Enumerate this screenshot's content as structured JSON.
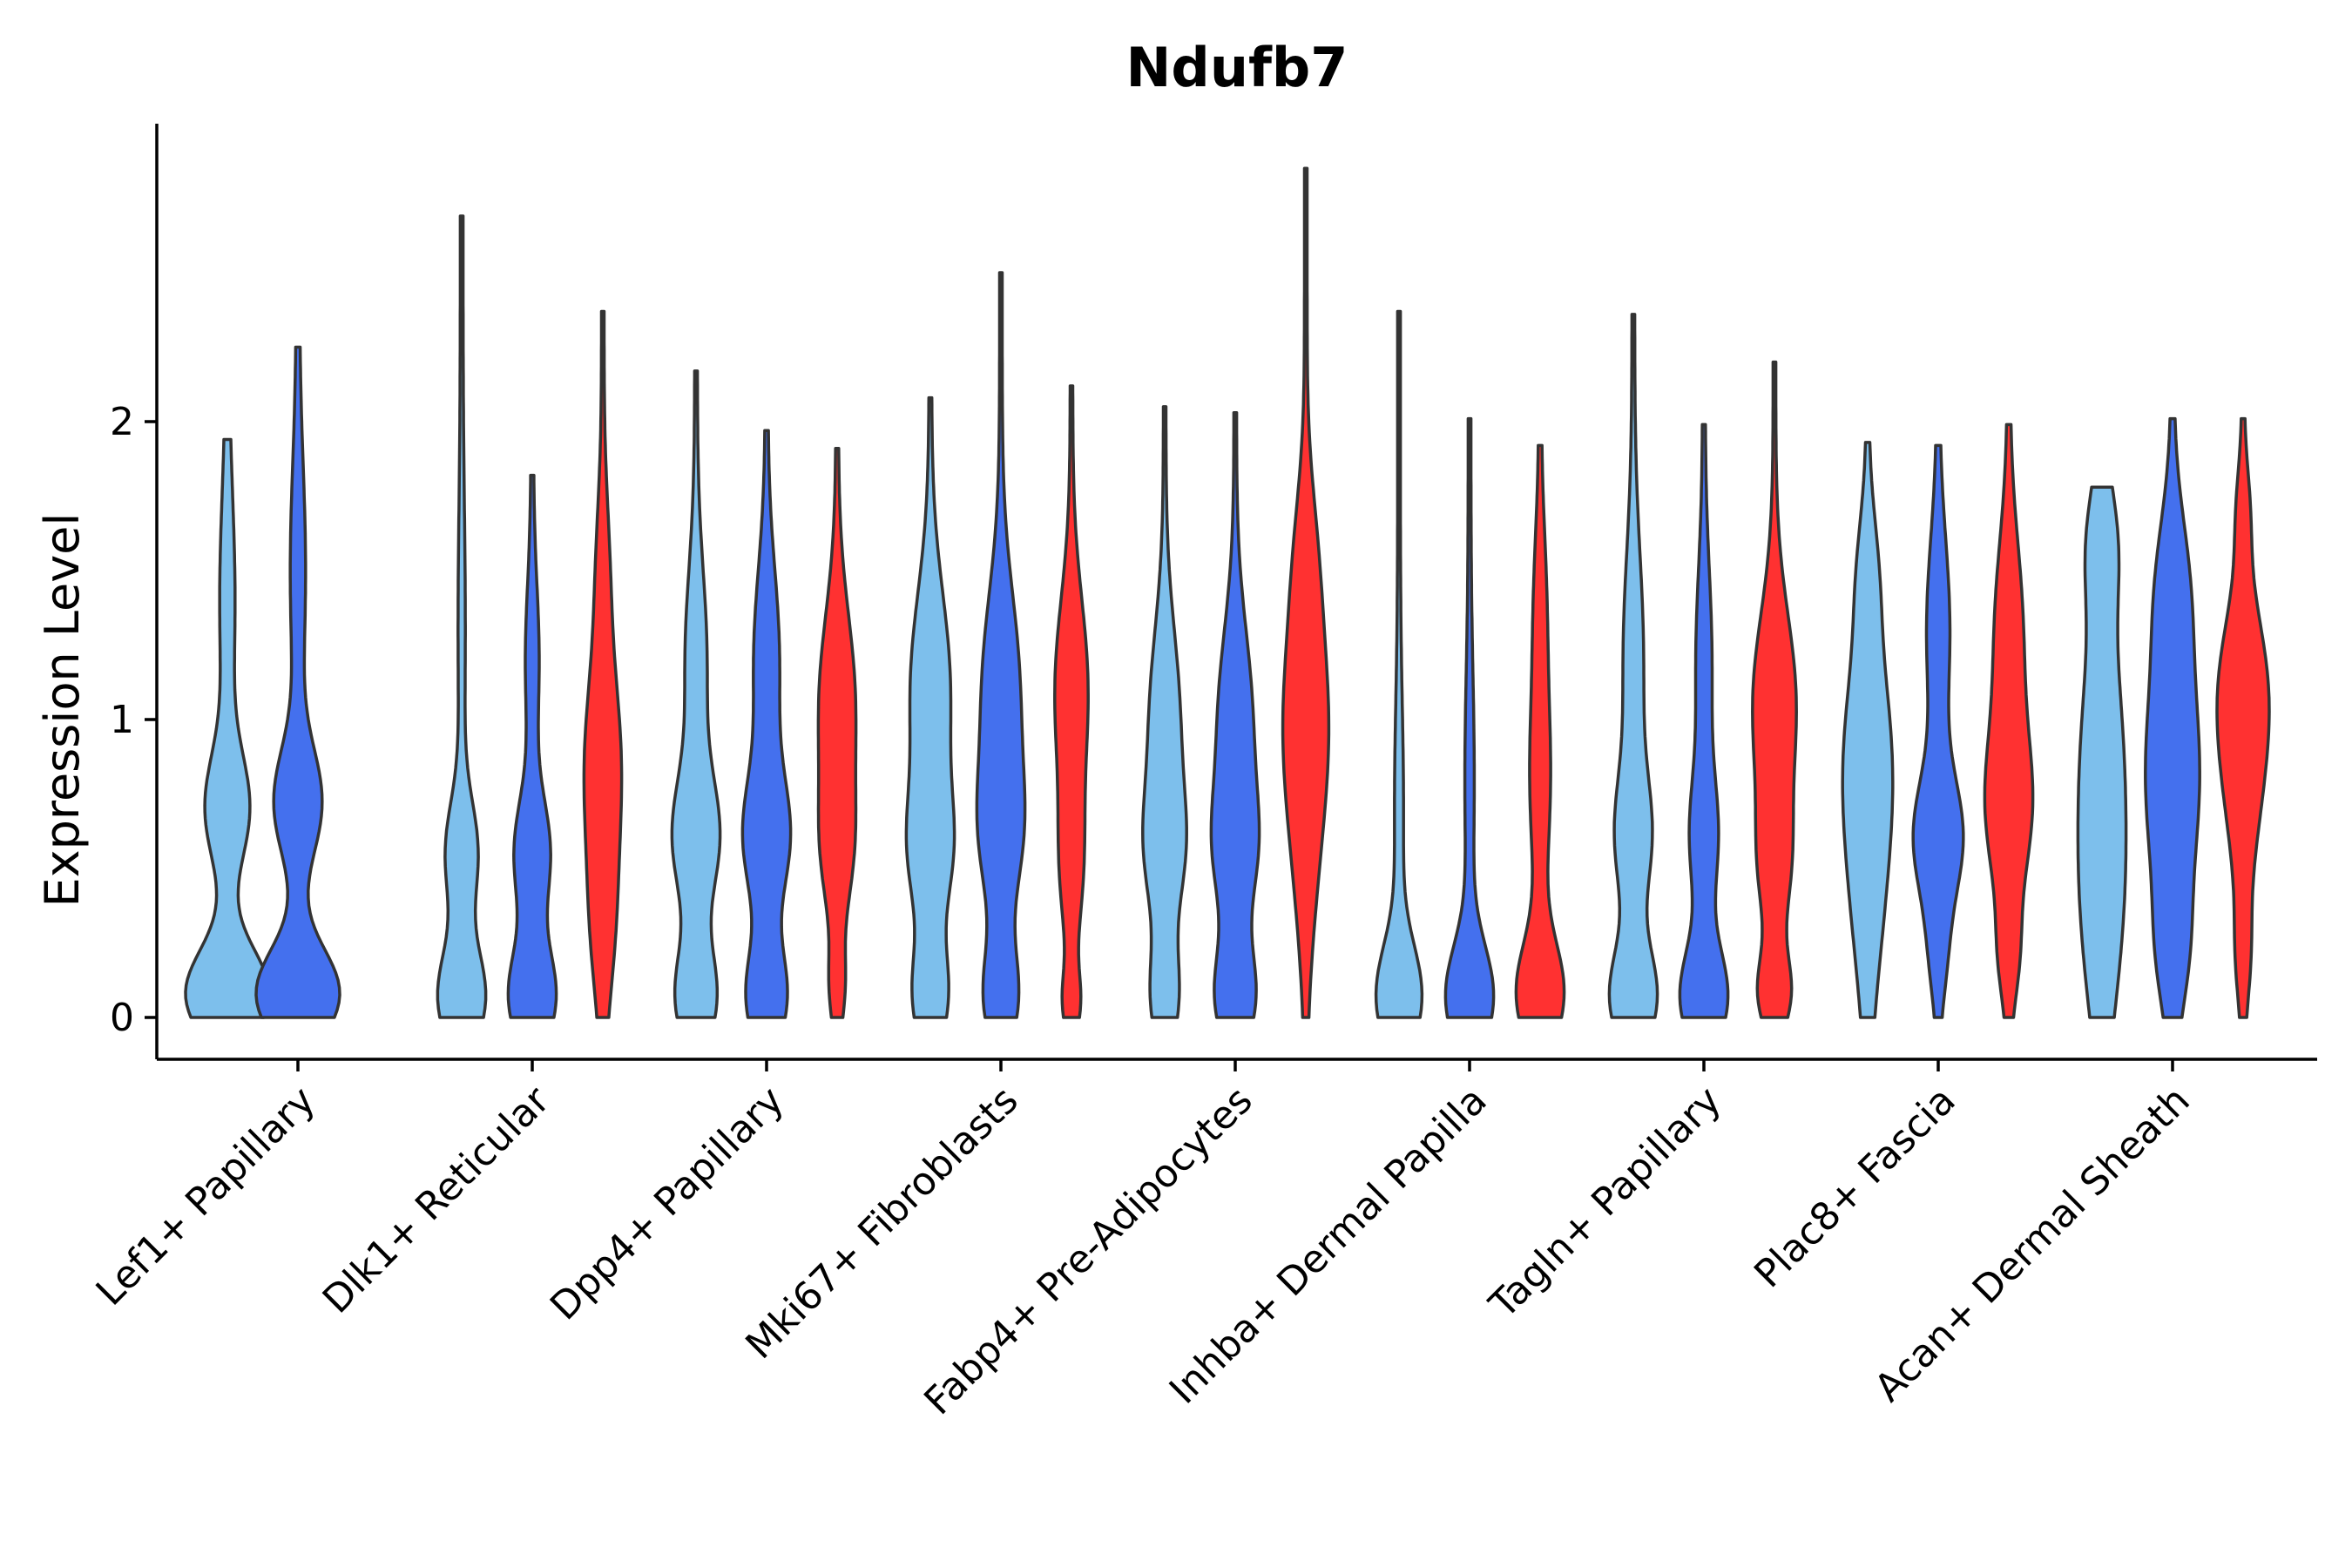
{
  "chart_data": {
    "type": "violin",
    "title": "Ndufb7",
    "xlabel": "",
    "ylabel": "Expression Level",
    "ylim": [
      -0.14,
      2.98
    ],
    "yticks": [
      0,
      1,
      2
    ],
    "categories": [
      "Lef1+ Papillary",
      "Dlk1+ Reticular",
      "Dpp4+ Papillary",
      "Mki67+ Fibroblasts",
      "Fabp4+ Pre-Adipocytes",
      "Inhba+ Dermal Papilla",
      "Tagln+ Papillary",
      "Plac8+ Fascia",
      "Acan+ Dermal Sheath"
    ],
    "groups": [
      {
        "name": "group-1",
        "color": "#7dbfec"
      },
      {
        "name": "group-2",
        "color": "#4470ee"
      },
      {
        "name": "group-3",
        "color": "#ff3131"
      }
    ],
    "violins": [
      {
        "category": 0,
        "group": 0,
        "max": 1.94,
        "w": 0.78,
        "peaks": [
          [
            0.08,
            1.0,
            0.15
          ],
          [
            0.7,
            0.5,
            0.18
          ],
          [
            1.4,
            0.15,
            0.35
          ]
        ]
      },
      {
        "category": 0,
        "group": 1,
        "max": 2.25,
        "w": 0.78,
        "peaks": [
          [
            0.08,
            1.0,
            0.15
          ],
          [
            0.72,
            0.55,
            0.18
          ],
          [
            1.5,
            0.15,
            0.35
          ]
        ]
      },
      {
        "category": 1,
        "group": 0,
        "max": 2.69,
        "w": 0.44,
        "peaks": [
          [
            0.07,
            1.0,
            0.16
          ],
          [
            0.55,
            0.65,
            0.17
          ],
          [
            1.3,
            0.1,
            0.4
          ]
        ]
      },
      {
        "category": 1,
        "group": 1,
        "max": 1.82,
        "w": 0.44,
        "peaks": [
          [
            0.07,
            1.0,
            0.16
          ],
          [
            0.55,
            0.75,
            0.18
          ],
          [
            1.2,
            0.25,
            0.25
          ]
        ]
      },
      {
        "category": 1,
        "group": 2,
        "max": 2.37,
        "w": 0.34,
        "peaks": [
          [
            0.3,
            0.55,
            0.25
          ],
          [
            0.85,
            1.0,
            0.3
          ],
          [
            1.5,
            0.3,
            0.25
          ]
        ]
      },
      {
        "category": 2,
        "group": 0,
        "max": 2.17,
        "w": 0.44,
        "peaks": [
          [
            0.07,
            0.9,
            0.16
          ],
          [
            0.6,
            1.0,
            0.2
          ],
          [
            1.2,
            0.45,
            0.3
          ]
        ]
      },
      {
        "category": 2,
        "group": 1,
        "max": 1.97,
        "w": 0.44,
        "peaks": [
          [
            0.07,
            0.9,
            0.16
          ],
          [
            0.6,
            1.0,
            0.2
          ],
          [
            1.2,
            0.55,
            0.3
          ]
        ]
      },
      {
        "category": 2,
        "group": 2,
        "max": 1.91,
        "w": 0.34,
        "peaks": [
          [
            0.1,
            0.35,
            0.12
          ],
          [
            0.55,
            0.7,
            0.2
          ],
          [
            1.05,
            1.0,
            0.3
          ]
        ]
      },
      {
        "category": 3,
        "group": 0,
        "max": 2.08,
        "w": 0.44,
        "peaks": [
          [
            0.07,
            0.85,
            0.16
          ],
          [
            0.55,
            0.95,
            0.2
          ],
          [
            1.1,
            1.0,
            0.32
          ]
        ]
      },
      {
        "category": 3,
        "group": 1,
        "max": 2.5,
        "w": 0.44,
        "peaks": [
          [
            0.07,
            0.9,
            0.16
          ],
          [
            0.6,
            0.95,
            0.22
          ],
          [
            1.1,
            1.0,
            0.32
          ]
        ]
      },
      {
        "category": 3,
        "group": 2,
        "max": 2.12,
        "w": 0.3,
        "peaks": [
          [
            0.05,
            0.45,
            0.1
          ],
          [
            0.5,
            0.6,
            0.22
          ],
          [
            1.1,
            1.0,
            0.3
          ]
        ]
      },
      {
        "category": 4,
        "group": 0,
        "max": 2.05,
        "w": 0.4,
        "peaks": [
          [
            0.07,
            0.8,
            0.16
          ],
          [
            0.55,
            1.0,
            0.2
          ],
          [
            1.0,
            0.9,
            0.3
          ]
        ]
      },
      {
        "category": 4,
        "group": 1,
        "max": 2.03,
        "w": 0.44,
        "peaks": [
          [
            0.07,
            1.0,
            0.16
          ],
          [
            0.55,
            0.9,
            0.2
          ],
          [
            1.0,
            0.85,
            0.3
          ]
        ]
      },
      {
        "category": 4,
        "group": 2,
        "max": 2.85,
        "w": 0.42,
        "peaks": [
          [
            0.5,
            0.35,
            0.3
          ],
          [
            1.0,
            1.0,
            0.32
          ],
          [
            1.55,
            0.4,
            0.25
          ]
        ]
      },
      {
        "category": 5,
        "group": 0,
        "max": 2.37,
        "w": 0.42,
        "peaks": [
          [
            0.07,
            1.0,
            0.17
          ],
          [
            0.7,
            0.15,
            0.35
          ]
        ]
      },
      {
        "category": 5,
        "group": 1,
        "max": 2.01,
        "w": 0.44,
        "peaks": [
          [
            0.07,
            1.0,
            0.17
          ],
          [
            0.8,
            0.15,
            0.35
          ]
        ]
      },
      {
        "category": 5,
        "group": 2,
        "max": 1.92,
        "w": 0.44,
        "peaks": [
          [
            0.08,
            1.0,
            0.17
          ],
          [
            0.8,
            0.4,
            0.3
          ],
          [
            1.4,
            0.2,
            0.25
          ]
        ]
      },
      {
        "category": 6,
        "group": 0,
        "max": 2.36,
        "w": 0.44,
        "peaks": [
          [
            0.07,
            1.0,
            0.16
          ],
          [
            0.6,
            0.7,
            0.2
          ],
          [
            1.2,
            0.4,
            0.35
          ]
        ]
      },
      {
        "category": 6,
        "group": 1,
        "max": 1.99,
        "w": 0.44,
        "peaks": [
          [
            0.07,
            1.0,
            0.16
          ],
          [
            0.6,
            0.55,
            0.2
          ],
          [
            1.2,
            0.3,
            0.3
          ]
        ]
      },
      {
        "category": 6,
        "group": 2,
        "max": 2.2,
        "w": 0.4,
        "peaks": [
          [
            0.08,
            0.7,
            0.12
          ],
          [
            0.5,
            0.6,
            0.2
          ],
          [
            1.05,
            1.0,
            0.3
          ]
        ]
      },
      {
        "category": 7,
        "group": 0,
        "max": 1.93,
        "w": 0.46,
        "peaks": [
          [
            0.3,
            0.35,
            0.3
          ],
          [
            0.85,
            1.0,
            0.35
          ],
          [
            1.5,
            0.3,
            0.2
          ]
        ]
      },
      {
        "category": 7,
        "group": 1,
        "max": 1.92,
        "w": 0.46,
        "peaks": [
          [
            0.2,
            0.25,
            0.15
          ],
          [
            0.6,
            1.0,
            0.2
          ],
          [
            1.3,
            0.45,
            0.3
          ]
        ]
      },
      {
        "category": 7,
        "group": 2,
        "max": 1.99,
        "w": 0.44,
        "peaks": [
          [
            0.2,
            0.35,
            0.15
          ],
          [
            0.7,
            1.0,
            0.25
          ],
          [
            1.3,
            0.6,
            0.3
          ]
        ]
      },
      {
        "category": 8,
        "group": 0,
        "max": 1.78,
        "w": 0.44,
        "peaks": [
          [
            0.3,
            0.8,
            0.35
          ],
          [
            0.9,
            1.0,
            0.4
          ],
          [
            1.6,
            0.65,
            0.2
          ]
        ]
      },
      {
        "category": 8,
        "group": 1,
        "max": 2.01,
        "w": 0.5,
        "peaks": [
          [
            0.2,
            0.4,
            0.2
          ],
          [
            0.8,
            1.0,
            0.35
          ],
          [
            1.45,
            0.5,
            0.25
          ]
        ]
      },
      {
        "category": 8,
        "group": 2,
        "max": 2.01,
        "w": 0.48,
        "peaks": [
          [
            0.2,
            0.3,
            0.15
          ],
          [
            0.8,
            0.9,
            0.3
          ],
          [
            1.15,
            1.0,
            0.25
          ],
          [
            1.7,
            0.3,
            0.15
          ]
        ]
      }
    ]
  }
}
